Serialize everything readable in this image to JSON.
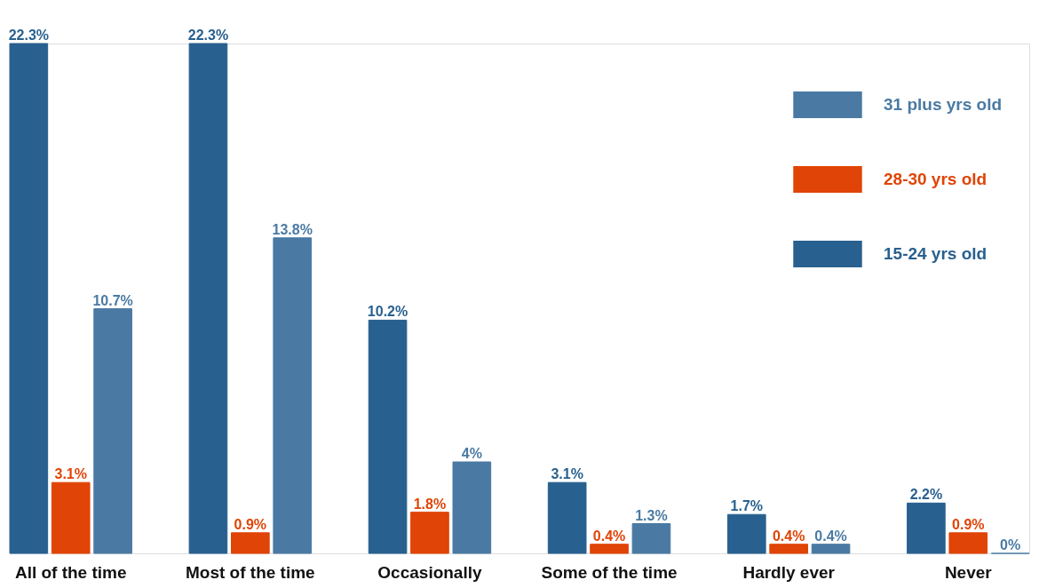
{
  "chart_data": {
    "type": "bar",
    "categories": [
      "All of the time",
      "Most of the time",
      "Occasionally",
      "Some of the time",
      "Hardly ever",
      "Never"
    ],
    "series": [
      {
        "name": "15-24 yrs old",
        "color": "#28608f",
        "values": [
          22.3,
          22.3,
          10.2,
          3.1,
          1.7,
          2.2
        ],
        "value_labels": [
          "22.3%",
          "22.3%",
          "10.2%",
          "3.1%",
          "1.7%",
          "2.2%"
        ]
      },
      {
        "name": "28-30 yrs old",
        "color": "#e04406",
        "values": [
          3.1,
          0.9,
          1.8,
          0.4,
          0.4,
          0.9
        ],
        "value_labels": [
          "3.1%",
          "0.9%",
          "1.8%",
          "0.4%",
          "0.4%",
          "0.9%"
        ]
      },
      {
        "name": "31 plus yrs old",
        "color": "#4a7aa3",
        "values": [
          10.7,
          13.8,
          4,
          1.3,
          0.4,
          0
        ],
        "value_labels": [
          "10.7%",
          "13.8%",
          "4%",
          "1.3%",
          "0.4%",
          "0%"
        ]
      }
    ],
    "legend": "top right",
    "grid": false,
    "tick_labels": "x"
  }
}
